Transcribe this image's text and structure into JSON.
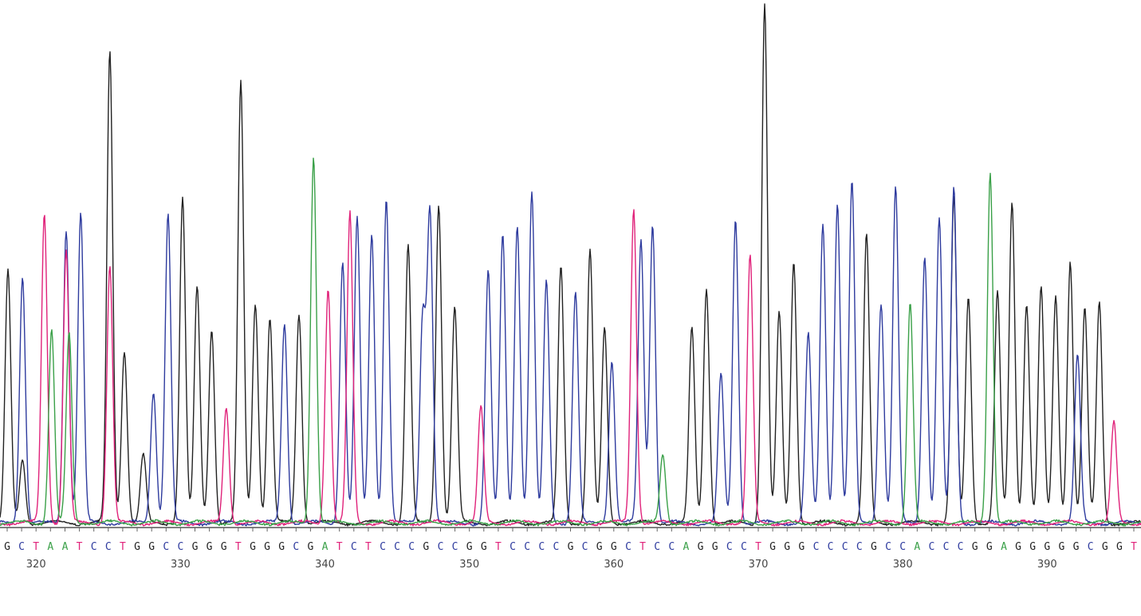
{
  "chart_data": {
    "type": "line",
    "title": "",
    "xlabel": "",
    "ylabel": "",
    "x_start": 318,
    "x_end": 393,
    "ylim": [
      0,
      1
    ],
    "grid": false,
    "legend": "none",
    "sequence": "GCTAATCCTGGCCGGGTGGGCGATCTCCCGCCGGTCCCCGCGGCTCCAGGCCTGGGCCCCGCCACCCGGAGGGGGCGGT",
    "tick_labels": [
      "320",
      "330",
      "340",
      "350",
      "360",
      "370",
      "380",
      "390"
    ],
    "tick_positions": [
      320,
      330,
      340,
      350,
      360,
      370,
      380,
      390
    ],
    "series": [
      {
        "name": "G",
        "color": "#222222",
        "peaks": [
          {
            "x": 318.0,
            "h": 0.48
          },
          {
            "x": 319.0,
            "h": 0.12
          },
          {
            "x": 325.0,
            "h": 0.9
          },
          {
            "x": 326.0,
            "h": 0.33
          },
          {
            "x": 327.3,
            "h": 0.13
          },
          {
            "x": 330.0,
            "h": 0.62
          },
          {
            "x": 331.0,
            "h": 0.45
          },
          {
            "x": 332.0,
            "h": 0.37
          },
          {
            "x": 334.0,
            "h": 0.84
          },
          {
            "x": 335.0,
            "h": 0.42
          },
          {
            "x": 336.0,
            "h": 0.39
          },
          {
            "x": 338.0,
            "h": 0.4
          },
          {
            "x": 345.5,
            "h": 0.53
          },
          {
            "x": 347.6,
            "h": 0.61
          },
          {
            "x": 348.7,
            "h": 0.41
          },
          {
            "x": 356.0,
            "h": 0.49
          },
          {
            "x": 358.0,
            "h": 0.52
          },
          {
            "x": 359.0,
            "h": 0.37
          },
          {
            "x": 365.0,
            "h": 0.37
          },
          {
            "x": 366.0,
            "h": 0.45
          },
          {
            "x": 370.0,
            "h": 0.99
          },
          {
            "x": 371.0,
            "h": 0.4
          },
          {
            "x": 372.0,
            "h": 0.5
          },
          {
            "x": 377.0,
            "h": 0.55
          },
          {
            "x": 383.0,
            "h": 0.62
          },
          {
            "x": 384.0,
            "h": 0.43
          },
          {
            "x": 386.0,
            "h": 0.44
          },
          {
            "x": 387.0,
            "h": 0.61
          },
          {
            "x": 388.0,
            "h": 0.42
          },
          {
            "x": 389.0,
            "h": 0.45
          },
          {
            "x": 390.0,
            "h": 0.43
          },
          {
            "x": 391.0,
            "h": 0.5
          },
          {
            "x": 392.0,
            "h": 0.41
          },
          {
            "x": 393.0,
            "h": 0.42
          }
        ]
      },
      {
        "name": "C",
        "color": "#2e3b9e",
        "peaks": [
          {
            "x": 319.0,
            "h": 0.47
          },
          {
            "x": 322.0,
            "h": 0.56
          },
          {
            "x": 323.0,
            "h": 0.59
          },
          {
            "x": 328.0,
            "h": 0.25
          },
          {
            "x": 329.0,
            "h": 0.59
          },
          {
            "x": 337.0,
            "h": 0.38
          },
          {
            "x": 341.0,
            "h": 0.5
          },
          {
            "x": 342.0,
            "h": 0.58
          },
          {
            "x": 343.0,
            "h": 0.55
          },
          {
            "x": 344.0,
            "h": 0.62
          },
          {
            "x": 346.5,
            "h": 0.39
          },
          {
            "x": 347.0,
            "h": 0.59
          },
          {
            "x": 351.0,
            "h": 0.48
          },
          {
            "x": 352.0,
            "h": 0.55
          },
          {
            "x": 353.0,
            "h": 0.57
          },
          {
            "x": 354.0,
            "h": 0.63
          },
          {
            "x": 355.0,
            "h": 0.46
          },
          {
            "x": 357.0,
            "h": 0.44
          },
          {
            "x": 359.5,
            "h": 0.31
          },
          {
            "x": 361.5,
            "h": 0.54
          },
          {
            "x": 362.3,
            "h": 0.57
          },
          {
            "x": 367.0,
            "h": 0.28
          },
          {
            "x": 368.0,
            "h": 0.58
          },
          {
            "x": 373.0,
            "h": 0.36
          },
          {
            "x": 374.0,
            "h": 0.57
          },
          {
            "x": 375.0,
            "h": 0.61
          },
          {
            "x": 376.0,
            "h": 0.65
          },
          {
            "x": 378.0,
            "h": 0.42
          },
          {
            "x": 379.0,
            "h": 0.64
          },
          {
            "x": 381.0,
            "h": 0.51
          },
          {
            "x": 382.0,
            "h": 0.58
          },
          {
            "x": 383.0,
            "h": 0.64
          },
          {
            "x": 391.5,
            "h": 0.32
          }
        ]
      },
      {
        "name": "T",
        "color": "#e0227a",
        "peaks": [
          {
            "x": 320.5,
            "h": 0.59
          },
          {
            "x": 322.0,
            "h": 0.52
          },
          {
            "x": 325.0,
            "h": 0.49
          },
          {
            "x": 333.0,
            "h": 0.22
          },
          {
            "x": 340.0,
            "h": 0.45
          },
          {
            "x": 341.5,
            "h": 0.59
          },
          {
            "x": 350.5,
            "h": 0.22
          },
          {
            "x": 361.0,
            "h": 0.6
          },
          {
            "x": 369.0,
            "h": 0.51
          },
          {
            "x": 394.0,
            "h": 0.19
          }
        ]
      },
      {
        "name": "A",
        "color": "#3aa048",
        "peaks": [
          {
            "x": 321.0,
            "h": 0.37
          },
          {
            "x": 322.2,
            "h": 0.36
          },
          {
            "x": 339.0,
            "h": 0.7
          },
          {
            "x": 363.0,
            "h": 0.13
          },
          {
            "x": 380.0,
            "h": 0.42
          },
          {
            "x": 385.5,
            "h": 0.67
          }
        ]
      }
    ]
  },
  "colors": {
    "G": "#222222",
    "C": "#2e3b9e",
    "T": "#e0227a",
    "A": "#3aa048",
    "axis": "#555555",
    "position_text": "#444444"
  }
}
